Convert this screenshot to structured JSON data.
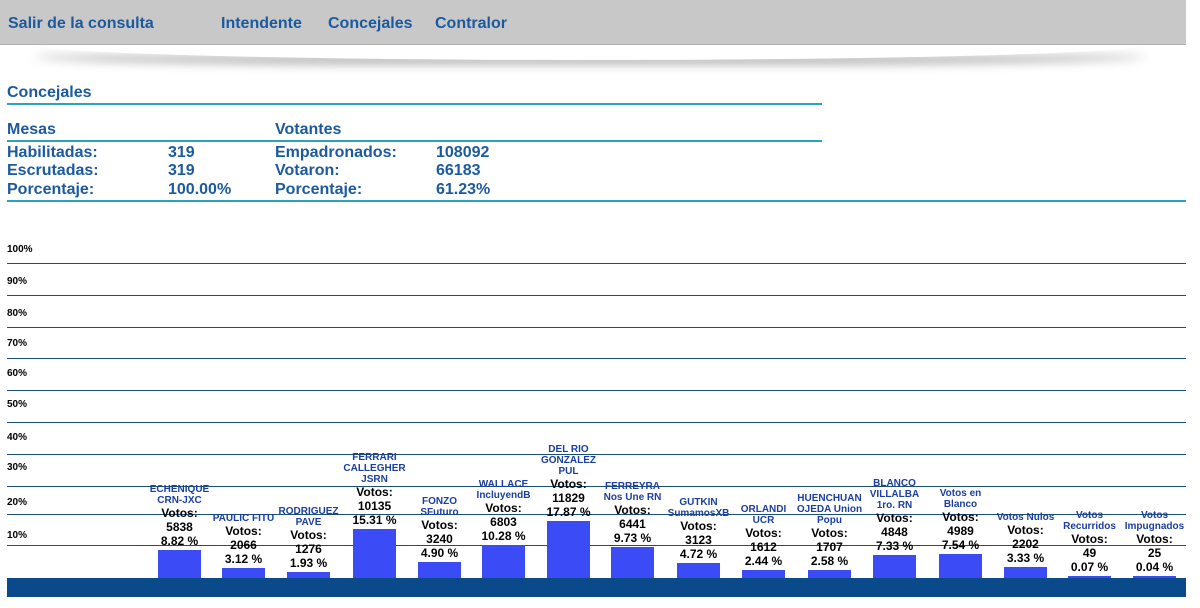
{
  "nav": {
    "exit_label": "Salir de la consulta",
    "items": [
      {
        "label": "Intendente"
      },
      {
        "label": "Concejales"
      },
      {
        "label": "Contralor"
      }
    ]
  },
  "section_title": "Concejales",
  "mesas": {
    "header": "Mesas",
    "rows": [
      {
        "label": "Habilitadas:",
        "value": "319"
      },
      {
        "label": "Escrutadas:",
        "value": "319"
      },
      {
        "label": "Porcentaje:",
        "value": "100.00%"
      }
    ]
  },
  "votantes": {
    "header": "Votantes",
    "rows": [
      {
        "label": "Empadronados:",
        "value": "108092"
      },
      {
        "label": "Votaron:",
        "value": "66183"
      },
      {
        "label": "Porcentaje:",
        "value": "61.23%"
      }
    ]
  },
  "colors": {
    "bar": "#3b4bf5",
    "accent": "#1b5a9e",
    "rule": "#2aa3be",
    "footer": "#0b4a8a"
  },
  "chart_data": {
    "type": "bar",
    "y_ticks": [
      "100%",
      "90%",
      "80%",
      "70%",
      "60%",
      "50%",
      "40%",
      "30%",
      "20%",
      "10%"
    ],
    "ylim": [
      0,
      100
    ],
    "votes_label": "Votos:",
    "categories": [
      {
        "name": "ECHENIQUE CRN-JXC",
        "votes": "5838",
        "pct_label": "8.82 %",
        "value": 8.82
      },
      {
        "name": "PAULIC FITU",
        "votes": "2066",
        "pct_label": "3.12 %",
        "value": 3.12
      },
      {
        "name": "RODRIGUEZ PAVE",
        "votes": "1276",
        "pct_label": "1.93 %",
        "value": 1.93
      },
      {
        "name": "FERRARI CALLEGHER JSRN",
        "votes": "10135",
        "pct_label": "15.31 %",
        "value": 15.31
      },
      {
        "name": "FONZO SFuturo",
        "votes": "3240",
        "pct_label": "4.90 %",
        "value": 4.9
      },
      {
        "name": "WALLACE IncluyendB",
        "votes": "6803",
        "pct_label": "10.28 %",
        "value": 10.28
      },
      {
        "name": "DEL RIO GONZALEZ PUL",
        "votes": "11829",
        "pct_label": "17.87 %",
        "value": 17.87
      },
      {
        "name": "FERREYRA Nos Une RN",
        "votes": "6441",
        "pct_label": "9.73 %",
        "value": 9.73
      },
      {
        "name": "GUTKIN SumamosXB",
        "votes": "3123",
        "pct_label": "4.72 %",
        "value": 4.72
      },
      {
        "name": "ORLANDI UCR",
        "votes": "1612",
        "pct_label": "2.44 %",
        "value": 2.44
      },
      {
        "name": "HUENCHUAN OJEDA Union Popu",
        "votes": "1707",
        "pct_label": "2.58 %",
        "value": 2.58
      },
      {
        "name": "BLANCO VILLALBA 1ro. RN",
        "votes": "4848",
        "pct_label": "7.33 %",
        "value": 7.33
      },
      {
        "name": "Votos en Blanco",
        "votes": "4989",
        "pct_label": "7.54 %",
        "value": 7.54
      },
      {
        "name": "Votos Nulos",
        "votes": "2202",
        "pct_label": "3.33 %",
        "value": 3.33
      },
      {
        "name": "Votos Recurridos",
        "votes": "49",
        "pct_label": "0.07 %",
        "value": 0.07
      },
      {
        "name": "Votos Impugnados",
        "votes": "25",
        "pct_label": "0.04 %",
        "value": 0.04
      }
    ]
  }
}
